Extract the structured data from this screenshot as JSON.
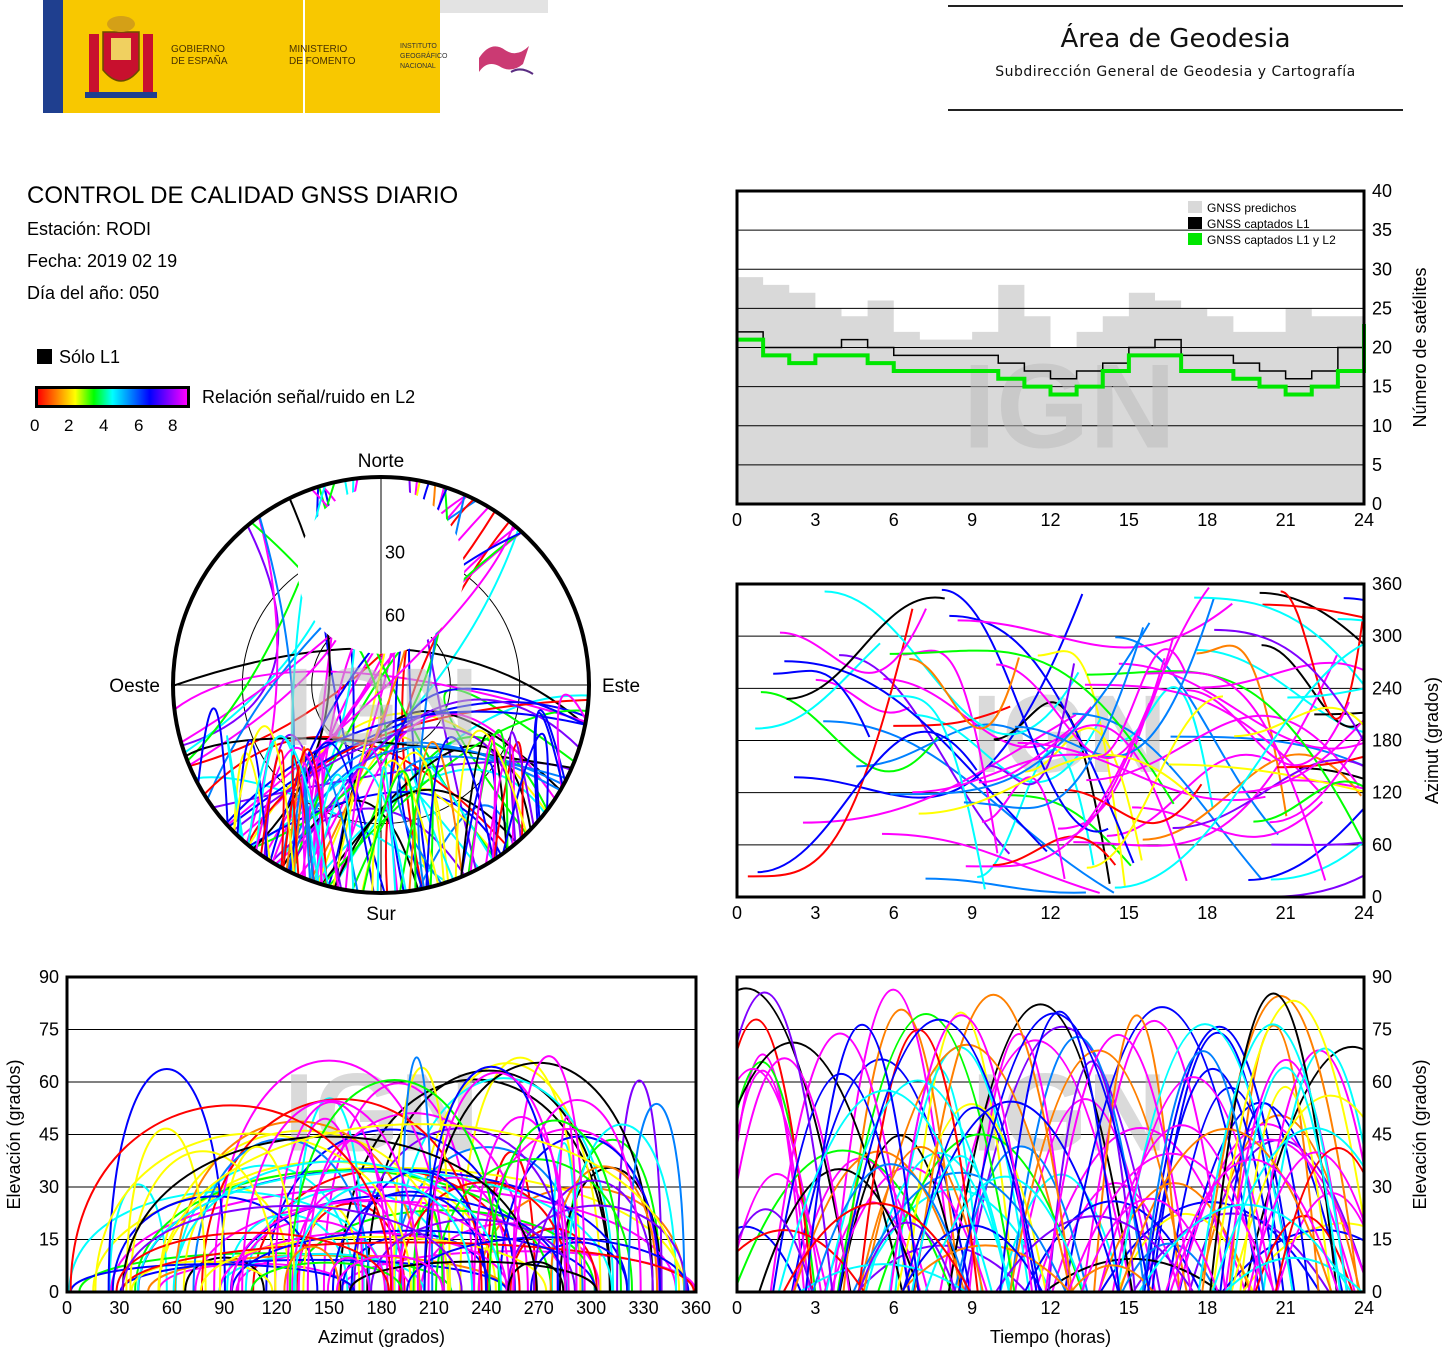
{
  "header": {
    "gov_line1": "GOBIERNO",
    "gov_line2": "DE ESPAÑA",
    "min_line1": "MINISTERIO",
    "min_line2": "DE FOMENTO",
    "ign_line1": "INSTITUTO",
    "ign_line2": "GEOGRÁFICO",
    "ign_line3": "NACIONAL",
    "area_title": "Área de Geodesia",
    "area_subtitle": "Subdirección General de Geodesia y Cartografía"
  },
  "info": {
    "title": "CONTROL DE CALIDAD GNSS DIARIO",
    "station": "Estación: RODI",
    "date": "Fecha: 2019 02 19",
    "doy": "Día del año: 050"
  },
  "legend": {
    "l1_only": "Sólo L1",
    "snr_label": "Relación señal/ruido en L2",
    "snr_ticks": [
      "0",
      "2",
      "4",
      "6",
      "8"
    ]
  },
  "colors": {
    "predicted": "#d9d9d9",
    "l1": "#000000",
    "l1l2": "#00e600",
    "snr_scale": [
      "#ff0000",
      "#ff8000",
      "#ffff00",
      "#00ff00",
      "#00ffff",
      "#0080ff",
      "#0000ff",
      "#8000ff",
      "#ff00ff"
    ]
  },
  "watermark": "IGN",
  "chart_data": [
    {
      "id": "satellites",
      "type": "area",
      "xlim": [
        0,
        24
      ],
      "ylim": [
        0,
        40
      ],
      "xticks": [
        "0",
        "3",
        "6",
        "9",
        "12",
        "15",
        "18",
        "21",
        "24"
      ],
      "yticks": [
        "0",
        "5",
        "10",
        "15",
        "20",
        "25",
        "30",
        "35",
        "40"
      ],
      "ylabel": "Número de satélites",
      "legend_position": "top-right",
      "x": [
        0,
        1,
        2,
        3,
        4,
        5,
        6,
        7,
        8,
        9,
        10,
        11,
        12,
        13,
        14,
        15,
        16,
        17,
        18,
        19,
        20,
        21,
        22,
        23,
        24
      ],
      "series": [
        {
          "name": "GNSS predichos",
          "values": [
            29,
            28,
            27,
            25,
            24,
            26,
            22,
            21,
            21,
            22,
            28,
            24,
            20,
            22,
            24,
            27,
            26,
            25,
            24,
            22,
            22,
            25,
            24,
            24,
            25
          ]
        },
        {
          "name": "GNSS captados L1",
          "values": [
            22,
            20,
            20,
            20,
            21,
            20,
            19,
            19,
            19,
            19,
            18,
            17,
            16,
            17,
            18,
            20,
            21,
            19,
            19,
            18,
            17,
            16,
            17,
            20,
            24
          ]
        },
        {
          "name": "GNSS captados L1 y L2",
          "values": [
            21,
            19,
            18,
            19,
            19,
            18,
            17,
            17,
            17,
            17,
            16,
            15,
            14,
            15,
            17,
            19,
            19,
            17,
            17,
            16,
            15,
            14,
            15,
            17,
            23
          ]
        }
      ],
      "grid": true
    },
    {
      "id": "skyplot",
      "type": "scatter",
      "projection": "polar",
      "direction_labels": {
        "north": "Norte",
        "south": "Sur",
        "east": "Este",
        "west": "Oeste"
      },
      "elevation_rings": [
        "30",
        "60"
      ]
    },
    {
      "id": "azimuth_time",
      "type": "scatter",
      "xlim": [
        0,
        24
      ],
      "ylim": [
        0,
        360
      ],
      "xticks": [
        "0",
        "3",
        "6",
        "9",
        "12",
        "15",
        "18",
        "21",
        "24"
      ],
      "yticks": [
        "0",
        "60",
        "120",
        "180",
        "240",
        "300",
        "360"
      ],
      "ylabel": "Azimut (grados)",
      "grid": true
    },
    {
      "id": "elevation_azimuth",
      "type": "scatter",
      "xlim": [
        0,
        360
      ],
      "ylim": [
        0,
        90
      ],
      "xticks": [
        "0",
        "30",
        "60",
        "90",
        "120",
        "150",
        "180",
        "210",
        "240",
        "270",
        "300",
        "330",
        "360"
      ],
      "yticks": [
        "0",
        "15",
        "30",
        "45",
        "60",
        "75",
        "90"
      ],
      "xlabel": "Azimut (grados)",
      "ylabel": "Elevación (grados)",
      "grid": true
    },
    {
      "id": "elevation_time",
      "type": "scatter",
      "xlim": [
        0,
        24
      ],
      "ylim": [
        0,
        90
      ],
      "xticks": [
        "0",
        "3",
        "6",
        "9",
        "12",
        "15",
        "18",
        "21",
        "24"
      ],
      "yticks": [
        "0",
        "15",
        "30",
        "45",
        "60",
        "75",
        "90"
      ],
      "xlabel": "Tiempo (horas)",
      "ylabel": "Elevación (grados)",
      "grid": true
    }
  ]
}
